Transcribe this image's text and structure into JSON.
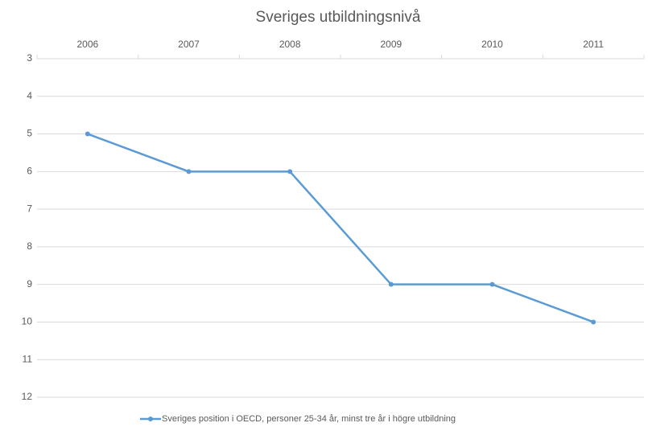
{
  "chart_data": {
    "type": "line",
    "title": "Sveriges utbildningsnivå",
    "categories": [
      "2006",
      "2007",
      "2008",
      "2009",
      "2010",
      "2011"
    ],
    "series": [
      {
        "name": "Sveriges position i OECD, personer 25-34 år, minst tre år i högre utbildning",
        "color": "#5b9bd5",
        "values": [
          5,
          6,
          6,
          9,
          9,
          10
        ]
      }
    ],
    "ylim": [
      3,
      12
    ],
    "yticks": [
      3,
      4,
      5,
      6,
      7,
      8,
      9,
      10,
      11,
      12
    ],
    "y_reversed": true,
    "grid": true,
    "legend": "bottom"
  }
}
